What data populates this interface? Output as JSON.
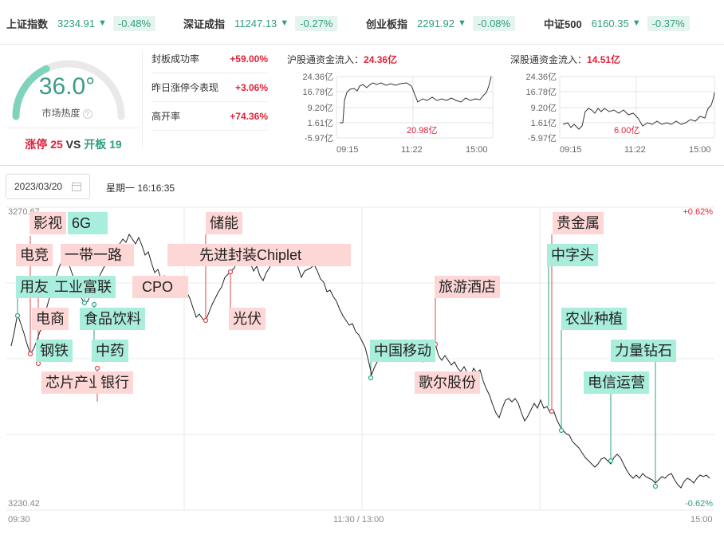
{
  "indices": [
    {
      "name": "上证指数",
      "value": "3234.91",
      "arrow": "▼",
      "change": "-0.48%"
    },
    {
      "name": "深证成指",
      "value": "11247.13",
      "arrow": "▼",
      "change": "-0.27%"
    },
    {
      "name": "创业板指",
      "value": "2291.92",
      "arrow": "▼",
      "change": "-0.08%"
    },
    {
      "name": "中证500",
      "value": "6160.35",
      "arrow": "▼",
      "change": "-0.37%"
    }
  ],
  "heat": {
    "value": "36.0°",
    "label": "市场热度",
    "help": "?",
    "level_percent": 36.0,
    "limit_up_label": "涨停",
    "limit_up_count": "25",
    "vs": "VS",
    "open_label": "开板",
    "open_count": "19"
  },
  "stats": [
    {
      "label": "封板成功率",
      "value": "+59.00%"
    },
    {
      "label": "昨日涨停今表现",
      "value": "+3.06%"
    },
    {
      "label": "高开率",
      "value": "+74.36%"
    }
  ],
  "flows": [
    {
      "title": "沪股通资金流入：",
      "title_value": "24.36亿",
      "y_ticks": [
        "24.36亿",
        "16.78亿",
        "9.20亿",
        "1.61亿",
        "-5.97亿"
      ],
      "x_ticks": [
        "09:15",
        "11:22",
        "15:00"
      ],
      "annotation": "20.98亿",
      "ylim": [
        -5.97,
        24.36
      ]
    },
    {
      "title": "深股通资金流入：",
      "title_value": "14.51亿",
      "y_ticks": [
        "24.36亿",
        "16.78亿",
        "9.20亿",
        "1.61亿",
        "-5.97亿"
      ],
      "x_ticks": [
        "09:15",
        "11:22",
        "15:00"
      ],
      "annotation": "6.00亿",
      "ylim": [
        -5.97,
        24.36
      ]
    }
  ],
  "date": "2023/03/20",
  "weekday_time": "星期一 16:16:35",
  "chart_data": {
    "type": "line",
    "ylim": [
      3230.42,
      3270.67
    ],
    "y_top_label": "3270.67",
    "y_bottom_label": "3230.42",
    "pct_top": "+0.62%",
    "pct_bottom": "-0.62%",
    "x_ticks": [
      "09:30",
      "11:30 / 13:00",
      "15:00"
    ],
    "concept_tags": [
      {
        "label": "影视",
        "dir": "up"
      },
      {
        "label": "6G",
        "dir": "down"
      },
      {
        "label": "储能",
        "dir": "up"
      },
      {
        "label": "贵金属",
        "dir": "up"
      },
      {
        "label": "电竞",
        "dir": "up"
      },
      {
        "label": "一带一路",
        "dir": "up"
      },
      {
        "label": "先进封装Chiplet",
        "dir": "up"
      },
      {
        "label": "中字头",
        "dir": "down"
      },
      {
        "label": "用友",
        "dir": "down"
      },
      {
        "label": "工业富联",
        "dir": "down"
      },
      {
        "label": "CPO",
        "dir": "up"
      },
      {
        "label": "旅游酒店",
        "dir": "up"
      },
      {
        "label": "电商",
        "dir": "up"
      },
      {
        "label": "食品饮料",
        "dir": "down"
      },
      {
        "label": "光伏",
        "dir": "up"
      },
      {
        "label": "农业种植",
        "dir": "down"
      },
      {
        "label": "钢铁",
        "dir": "down"
      },
      {
        "label": "中药",
        "dir": "down"
      },
      {
        "label": "中国移动",
        "dir": "down"
      },
      {
        "label": "力量钻石",
        "dir": "down"
      },
      {
        "label": "芯片产业",
        "dir": "up"
      },
      {
        "label": "银行",
        "dir": "up"
      },
      {
        "label": "歌尔股份",
        "dir": "up"
      },
      {
        "label": "电信运营",
        "dir": "down"
      }
    ]
  }
}
